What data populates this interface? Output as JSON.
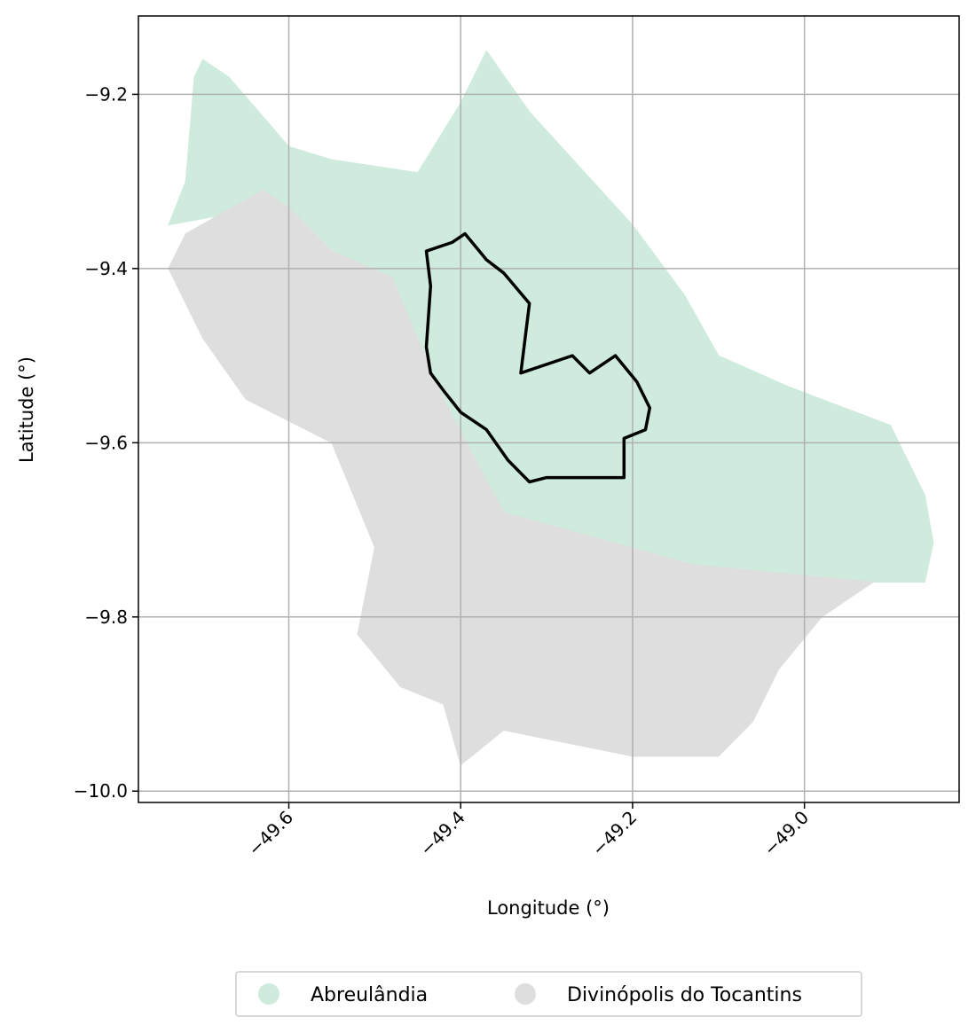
{
  "map": {
    "xlabel": "Longitude (°)",
    "ylabel": "Latitude (°)",
    "x_ticks": [
      {
        "value": -49.6,
        "label": "−49.6"
      },
      {
        "value": -49.4,
        "label": "−49.4"
      },
      {
        "value": -49.2,
        "label": "−49.2"
      },
      {
        "value": -49.0,
        "label": "−49.0"
      }
    ],
    "y_ticks": [
      {
        "value": -9.2,
        "label": "−9.2"
      },
      {
        "value": -9.4,
        "label": "−9.4"
      },
      {
        "value": -9.6,
        "label": "−9.6"
      },
      {
        "value": -9.8,
        "label": "−9.8"
      },
      {
        "value": -10.0,
        "label": "−10.0"
      }
    ],
    "xlim": [
      -49.775,
      -48.82
    ],
    "ylim": [
      -10.013,
      -9.11
    ],
    "grid": true,
    "legend_position": "bottom-center"
  },
  "chart_data": {
    "type": "map",
    "regions": [
      {
        "name": "Abreulândia",
        "color": "#cfebdd",
        "outline": [
          [
            -49.71,
            -9.18
          ],
          [
            -49.7,
            -9.16
          ],
          [
            -49.67,
            -9.18
          ],
          [
            -49.6,
            -9.26
          ],
          [
            -49.55,
            -9.275
          ],
          [
            -49.45,
            -9.29
          ],
          [
            -49.4,
            -9.21
          ],
          [
            -49.37,
            -9.15
          ],
          [
            -49.32,
            -9.22
          ],
          [
            -49.2,
            -9.35
          ],
          [
            -49.14,
            -9.43
          ],
          [
            -49.1,
            -9.5
          ],
          [
            -49.02,
            -9.535
          ],
          [
            -48.9,
            -9.58
          ],
          [
            -48.86,
            -9.66
          ],
          [
            -48.85,
            -9.715
          ],
          [
            -48.86,
            -9.76
          ],
          [
            -48.92,
            -9.76
          ],
          [
            -49.13,
            -9.74
          ],
          [
            -49.35,
            -9.68
          ],
          [
            -49.42,
            -9.55
          ],
          [
            -49.48,
            -9.41
          ],
          [
            -49.55,
            -9.38
          ],
          [
            -49.63,
            -9.33
          ],
          [
            -49.74,
            -9.35
          ],
          [
            -49.72,
            -9.3
          ],
          [
            -49.71,
            -9.18
          ]
        ]
      },
      {
        "name": "Divinópolis do Tocantins",
        "color": "#dedede",
        "outline": [
          [
            -49.74,
            -9.4
          ],
          [
            -49.72,
            -9.36
          ],
          [
            -49.63,
            -9.31
          ],
          [
            -49.6,
            -9.33
          ],
          [
            -49.55,
            -9.38
          ],
          [
            -49.48,
            -9.41
          ],
          [
            -49.42,
            -9.55
          ],
          [
            -49.35,
            -9.68
          ],
          [
            -49.13,
            -9.74
          ],
          [
            -48.92,
            -9.76
          ],
          [
            -48.98,
            -9.8
          ],
          [
            -49.03,
            -9.86
          ],
          [
            -49.06,
            -9.92
          ],
          [
            -49.1,
            -9.96
          ],
          [
            -49.2,
            -9.96
          ],
          [
            -49.35,
            -9.93
          ],
          [
            -49.4,
            -9.97
          ],
          [
            -49.42,
            -9.9
          ],
          [
            -49.47,
            -9.88
          ],
          [
            -49.52,
            -9.82
          ],
          [
            -49.5,
            -9.72
          ],
          [
            -49.55,
            -9.6
          ],
          [
            -49.65,
            -9.55
          ],
          [
            -49.7,
            -9.48
          ],
          [
            -49.74,
            -9.4
          ]
        ]
      }
    ],
    "highlight_boundary": [
      [
        -49.44,
        -9.38
      ],
      [
        -49.41,
        -9.37
      ],
      [
        -49.395,
        -9.36
      ],
      [
        -49.37,
        -9.39
      ],
      [
        -49.35,
        -9.405
      ],
      [
        -49.32,
        -9.44
      ],
      [
        -49.33,
        -9.52
      ],
      [
        -49.27,
        -9.5
      ],
      [
        -49.25,
        -9.52
      ],
      [
        -49.22,
        -9.5
      ],
      [
        -49.195,
        -9.53
      ],
      [
        -49.18,
        -9.56
      ],
      [
        -49.185,
        -9.585
      ],
      [
        -49.21,
        -9.595
      ],
      [
        -49.21,
        -9.64
      ],
      [
        -49.25,
        -9.64
      ],
      [
        -49.3,
        -9.64
      ],
      [
        -49.32,
        -9.645
      ],
      [
        -49.345,
        -9.62
      ],
      [
        -49.37,
        -9.585
      ],
      [
        -49.4,
        -9.565
      ],
      [
        -49.42,
        -9.54
      ],
      [
        -49.435,
        -9.52
      ],
      [
        -49.44,
        -9.49
      ],
      [
        -49.435,
        -9.42
      ],
      [
        -49.44,
        -9.38
      ]
    ]
  },
  "legend": {
    "items": [
      {
        "label": "Abreulândia",
        "color": "#cfebdd"
      },
      {
        "label": "Divinópolis do Tocantins",
        "color": "#dedede"
      }
    ]
  }
}
